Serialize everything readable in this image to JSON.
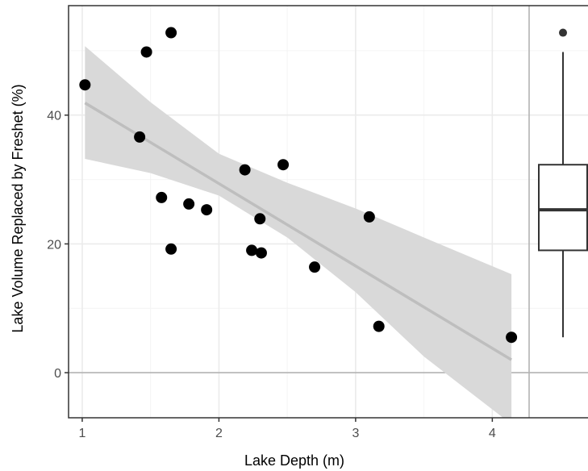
{
  "chart_data": {
    "type": "scatter",
    "xlabel": "Lake Depth (m)",
    "ylabel": "Lake Volume Replaced by Freshet (%)",
    "xlim": [
      0.9,
      4.7
    ],
    "ylim": [
      -7,
      57
    ],
    "x_ticks": [
      "1",
      "2",
      "3",
      "4"
    ],
    "y_ticks": [
      "0",
      "20",
      "40"
    ],
    "grid": true,
    "points": [
      {
        "x": 1.02,
        "y": 44.7
      },
      {
        "x": 1.42,
        "y": 36.6
      },
      {
        "x": 1.47,
        "y": 49.8
      },
      {
        "x": 1.58,
        "y": 27.2
      },
      {
        "x": 1.65,
        "y": 52.8
      },
      {
        "x": 1.65,
        "y": 19.2
      },
      {
        "x": 1.78,
        "y": 26.2
      },
      {
        "x": 1.91,
        "y": 25.3
      },
      {
        "x": 2.19,
        "y": 31.5
      },
      {
        "x": 2.24,
        "y": 19.0
      },
      {
        "x": 2.3,
        "y": 23.9
      },
      {
        "x": 2.31,
        "y": 18.6
      },
      {
        "x": 2.47,
        "y": 32.3
      },
      {
        "x": 2.7,
        "y": 16.4
      },
      {
        "x": 3.1,
        "y": 24.2
      },
      {
        "x": 3.17,
        "y": 7.2
      },
      {
        "x": 4.14,
        "y": 5.5
      }
    ],
    "trend_line": {
      "x": [
        1.02,
        4.14
      ],
      "y": [
        41.9,
        2.0
      ]
    },
    "confidence_band": {
      "x": [
        1.02,
        1.5,
        2.0,
        2.5,
        3.0,
        3.5,
        4.14
      ],
      "lower": [
        33.2,
        31.0,
        27.5,
        21.0,
        12.5,
        2.5,
        -8.0
      ],
      "upper": [
        50.7,
        42.0,
        34.0,
        29.5,
        25.5,
        21.0,
        15.3
      ]
    },
    "boxplot": {
      "min": 5.5,
      "q1": 19.0,
      "median": 25.3,
      "q3": 32.3,
      "max": 49.8,
      "outliers": [
        52.8
      ]
    },
    "colors": {
      "points": "#000000",
      "trend_line": "#bebebe",
      "band": "#d9d9d9",
      "grid": "#ebebeb",
      "zero_line": "#b3b3b3",
      "outlier": "#333333"
    }
  }
}
